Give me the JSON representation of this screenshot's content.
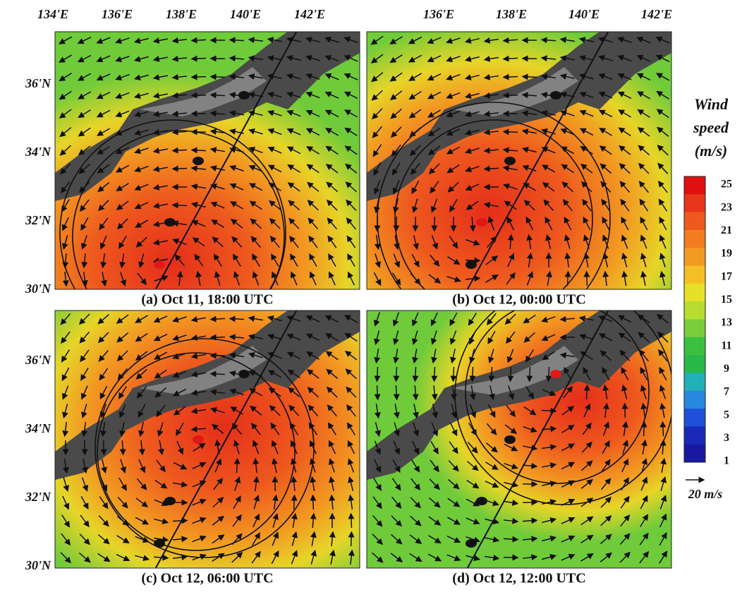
{
  "top_axis": {
    "left_ticks": [
      "134'E",
      "136'E",
      "138'E",
      "140'E",
      "142'E"
    ],
    "right_ticks": [
      "136'E",
      "138'E",
      "140'E",
      "142'E"
    ]
  },
  "left_axis": {
    "top_ticks": [
      "36'N",
      "34'N",
      "32'N",
      "30'N"
    ],
    "bottom_ticks": [
      "36'N",
      "34'N",
      "32'N",
      "30'N"
    ]
  },
  "panels": [
    {
      "caption": "(a) Oct 11, 18:00 UTC"
    },
    {
      "caption": "(b) Oct 12, 00:00 UTC"
    },
    {
      "caption": "(c) Oct 12, 06:00 UTC"
    },
    {
      "caption": "(d) Oct 12, 12:00 UTC"
    }
  ],
  "colorbar": {
    "title": [
      "Wind",
      "speed",
      "(m/s)"
    ],
    "labels": [
      25,
      23,
      21,
      19,
      17,
      15,
      13,
      11,
      9,
      7,
      5,
      3,
      1
    ]
  },
  "reference_vector": "20 m/s"
}
